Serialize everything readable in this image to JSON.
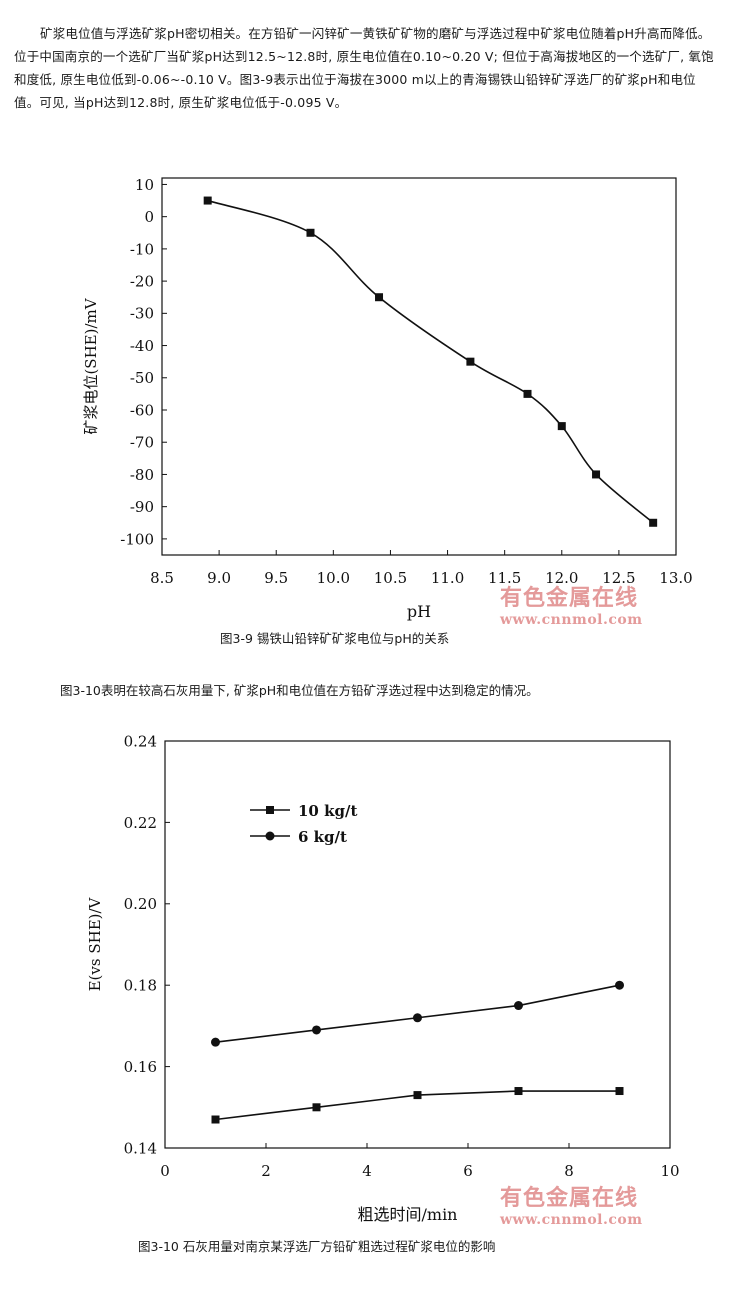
{
  "text": {
    "para1": "矿浆电位值与浮选矿浆pH密切相关。在方铅矿一闪锌矿一黄铁矿矿物的磨矿与浮选过程中矿浆电位随着pH升高而降低。位于中国南京的一个选矿厂当矿浆pH达到12.5~12.8时, 原生电位值在0.10~0.20 V; 但位于高海拔地区的一个选矿厂, 氧饱和度低, 原生电位低到-0.06~-0.10 V。图3-9表示出位于海拔在3000 m以上的青海锡铁山铅锌矿浮选厂的矿浆pH和电位值。可见, 当pH达到12.8时, 原生矿浆电位低于-0.095 V。",
    "caption1": "图3-9 锡铁山铅锌矿矿浆电位与pH的关系",
    "para2": "图3-10表明在较高石灰用量下, 矿浆pH和电位值在方铅矿浮选过程中达到稳定的情况。",
    "caption2": "图3-10 石灰用量对南京某浮选厂方铅矿粗选过程矿浆电位的影响"
  },
  "watermark": {
    "cn": "有色金属在线",
    "url": "www.cnnmol.com",
    "color": "#e49a9a"
  },
  "chart_data": [
    {
      "type": "line",
      "xlabel": "pH",
      "ylabel": "矿浆电位(SHE)/mV",
      "xlim": [
        8.5,
        13.0
      ],
      "ylim": [
        -105,
        12
      ],
      "xticks": [
        "8.5",
        "9.0",
        "9.5",
        "10.0",
        "10.5",
        "11.0",
        "11.5",
        "12.0",
        "12.5",
        "13.0"
      ],
      "yticks": [
        "10",
        "0",
        "-10",
        "-20",
        "-30",
        "-40",
        "-50",
        "-60",
        "-70",
        "-80",
        "-90",
        "-100"
      ],
      "series": [
        {
          "marker": "square",
          "x": [
            8.9,
            9.8,
            10.4,
            11.2,
            11.7,
            12.0,
            12.3,
            12.8
          ],
          "y": [
            5,
            -5,
            -25,
            -45,
            -55,
            -65,
            -80,
            -95
          ]
        }
      ]
    },
    {
      "type": "line",
      "xlabel": "粗选时间/min",
      "ylabel": "E(vs SHE)/V",
      "xlim": [
        0,
        10
      ],
      "ylim": [
        0.14,
        0.24
      ],
      "xticks": [
        "0",
        "2",
        "4",
        "6",
        "8",
        "10"
      ],
      "yticks": [
        "0.14",
        "0.16",
        "0.18",
        "0.20",
        "0.22",
        "0.24"
      ],
      "legend": "top-left",
      "series": [
        {
          "name": "10 kg/t",
          "marker": "square",
          "x": [
            1,
            3,
            5,
            7,
            9
          ],
          "y": [
            0.147,
            0.15,
            0.153,
            0.154,
            0.154
          ]
        },
        {
          "name": "6 kg/t",
          "marker": "circle",
          "x": [
            1,
            3,
            5,
            7,
            9
          ],
          "y": [
            0.166,
            0.169,
            0.172,
            0.175,
            0.18
          ]
        }
      ]
    }
  ]
}
